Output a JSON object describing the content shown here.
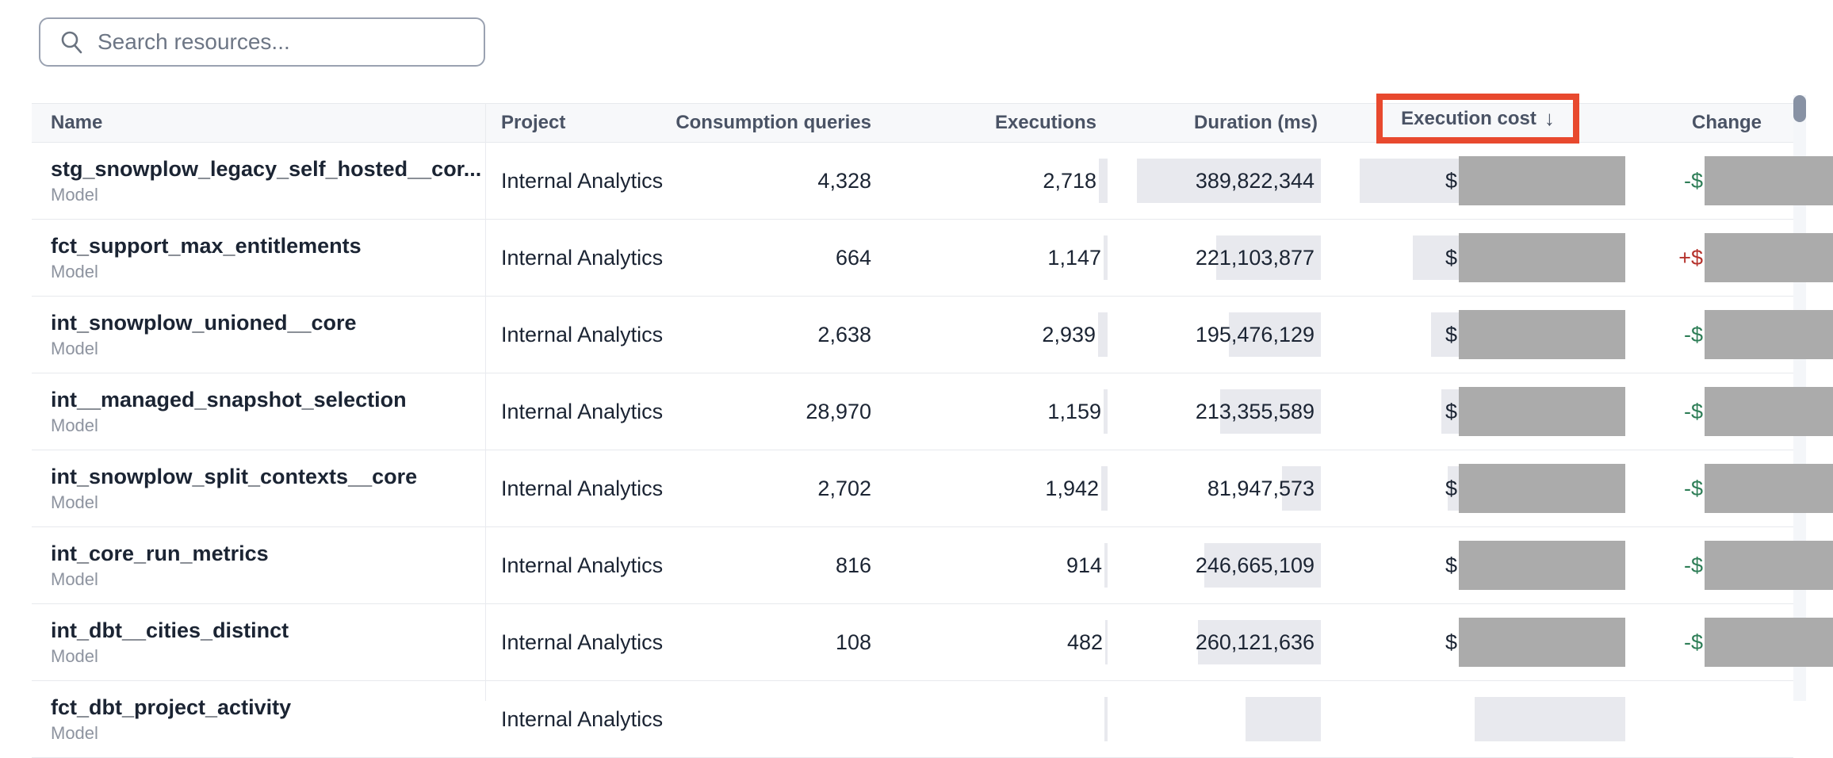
{
  "search": {
    "placeholder": "Search resources..."
  },
  "table": {
    "columns": [
      {
        "key": "name",
        "label": "Name"
      },
      {
        "key": "project",
        "label": "Project"
      },
      {
        "key": "consumption_queries",
        "label": "Consumption queries"
      },
      {
        "key": "executions",
        "label": "Executions"
      },
      {
        "key": "duration_ms",
        "label": "Duration (ms)"
      },
      {
        "key": "execution_cost",
        "label": "Execution cost",
        "sorted": "descending"
      },
      {
        "key": "change",
        "label": "Change"
      }
    ],
    "sort_arrow": "↓",
    "rows": [
      {
        "name": "stg_snowplow_legacy_self_hosted__cor...",
        "type": "Model",
        "project": "Internal Analytics",
        "consumption_queries": "4,328",
        "executions": "2,718",
        "executions_value": 2718,
        "duration_ms": "389,822,344",
        "duration_value": 389822344,
        "execution_cost_prefix": "$",
        "execution_cost_redacted": true,
        "cost_bar_width": 335,
        "change_prefix": "-$",
        "change_direction": "down",
        "change_redacted": true
      },
      {
        "name": "fct_support_max_entitlements",
        "type": "Model",
        "project": "Internal Analytics",
        "consumption_queries": "664",
        "executions": "1,147",
        "executions_value": 1147,
        "duration_ms": "221,103,877",
        "duration_value": 221103877,
        "execution_cost_prefix": "$",
        "execution_cost_redacted": true,
        "cost_bar_width": 268,
        "change_prefix": "+$",
        "change_direction": "up",
        "change_redacted": true
      },
      {
        "name": "int_snowplow_unioned__core",
        "type": "Model",
        "project": "Internal Analytics",
        "consumption_queries": "2,638",
        "executions": "2,939",
        "executions_value": 2939,
        "duration_ms": "195,476,129",
        "duration_value": 195476129,
        "execution_cost_prefix": "$",
        "execution_cost_redacted": true,
        "cost_bar_width": 245,
        "change_prefix": "-$",
        "change_direction": "down",
        "change_redacted": true
      },
      {
        "name": "int__managed_snapshot_selection",
        "type": "Model",
        "project": "Internal Analytics",
        "consumption_queries": "28,970",
        "executions": "1,159",
        "executions_value": 1159,
        "duration_ms": "213,355,589",
        "duration_value": 213355589,
        "execution_cost_prefix": "$",
        "execution_cost_redacted": true,
        "cost_bar_width": 232,
        "change_prefix": "-$",
        "change_direction": "down",
        "change_redacted": true
      },
      {
        "name": "int_snowplow_split_contexts__core",
        "type": "Model",
        "project": "Internal Analytics",
        "consumption_queries": "2,702",
        "executions": "1,942",
        "executions_value": 1942,
        "duration_ms": "81,947,573",
        "duration_value": 81947573,
        "execution_cost_prefix": "$",
        "execution_cost_redacted": true,
        "cost_bar_width": 224,
        "change_prefix": "-$",
        "change_direction": "down",
        "change_redacted": true
      },
      {
        "name": "int_core_run_metrics",
        "type": "Model",
        "project": "Internal Analytics",
        "consumption_queries": "816",
        "executions": "914",
        "executions_value": 914,
        "duration_ms": "246,665,109",
        "duration_value": 246665109,
        "execution_cost_prefix": "$",
        "execution_cost_redacted": true,
        "cost_bar_width": 205,
        "change_prefix": "-$",
        "change_direction": "down",
        "change_redacted": true
      },
      {
        "name": "int_dbt__cities_distinct",
        "type": "Model",
        "project": "Internal Analytics",
        "consumption_queries": "108",
        "executions": "482",
        "executions_value": 482,
        "duration_ms": "260,121,636",
        "duration_value": 260121636,
        "execution_cost_prefix": "$",
        "execution_cost_redacted": true,
        "cost_bar_width": 195,
        "change_prefix": "-$",
        "change_direction": "down",
        "change_redacted": true
      },
      {
        "name": "fct_dbt_project_activity",
        "type": "Model",
        "project": "Internal Analytics",
        "consumption_queries": "",
        "executions": "",
        "executions_value": 900,
        "duration_ms": "",
        "duration_value": 160000000,
        "execution_cost_prefix": "",
        "execution_cost_redacted": false,
        "cost_bar_width": 190,
        "change_prefix": "",
        "change_direction": "down",
        "change_redacted": false,
        "partial": true
      }
    ]
  },
  "annotation": {
    "type": "highlight-box",
    "target_column": "Execution cost"
  },
  "colors": {
    "annotation_box": "#e8492e",
    "redaction_block": "#ababab",
    "negative_change": "#2e7e57",
    "positive_change": "#b5322c",
    "header_background": "#f7f8fa",
    "value_bar": "#e8e9ee",
    "scrollbar_thumb": "#8892a4"
  }
}
